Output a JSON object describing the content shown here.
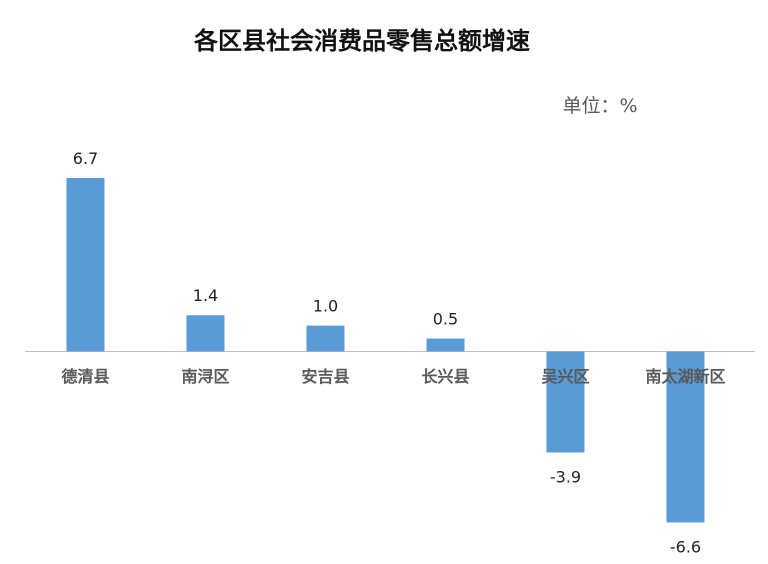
{
  "chart_data": {
    "type": "bar",
    "title": "各区县社会消费品零售总额增速",
    "unit_label": "单位：%",
    "categories": [
      "德清县",
      "南浔区",
      "安吉县",
      "长兴县",
      "吴兴区",
      "南太湖新区"
    ],
    "values": [
      6.7,
      1.4,
      1.0,
      0.5,
      -3.9,
      -6.6
    ],
    "value_labels": [
      "6.7",
      "1.4",
      "1.0",
      "0.5",
      "-3.9",
      "-6.6"
    ],
    "bar_color": "#5b9bd5",
    "axis_color": "#bfbfbf",
    "grid": false,
    "legend": "none"
  }
}
